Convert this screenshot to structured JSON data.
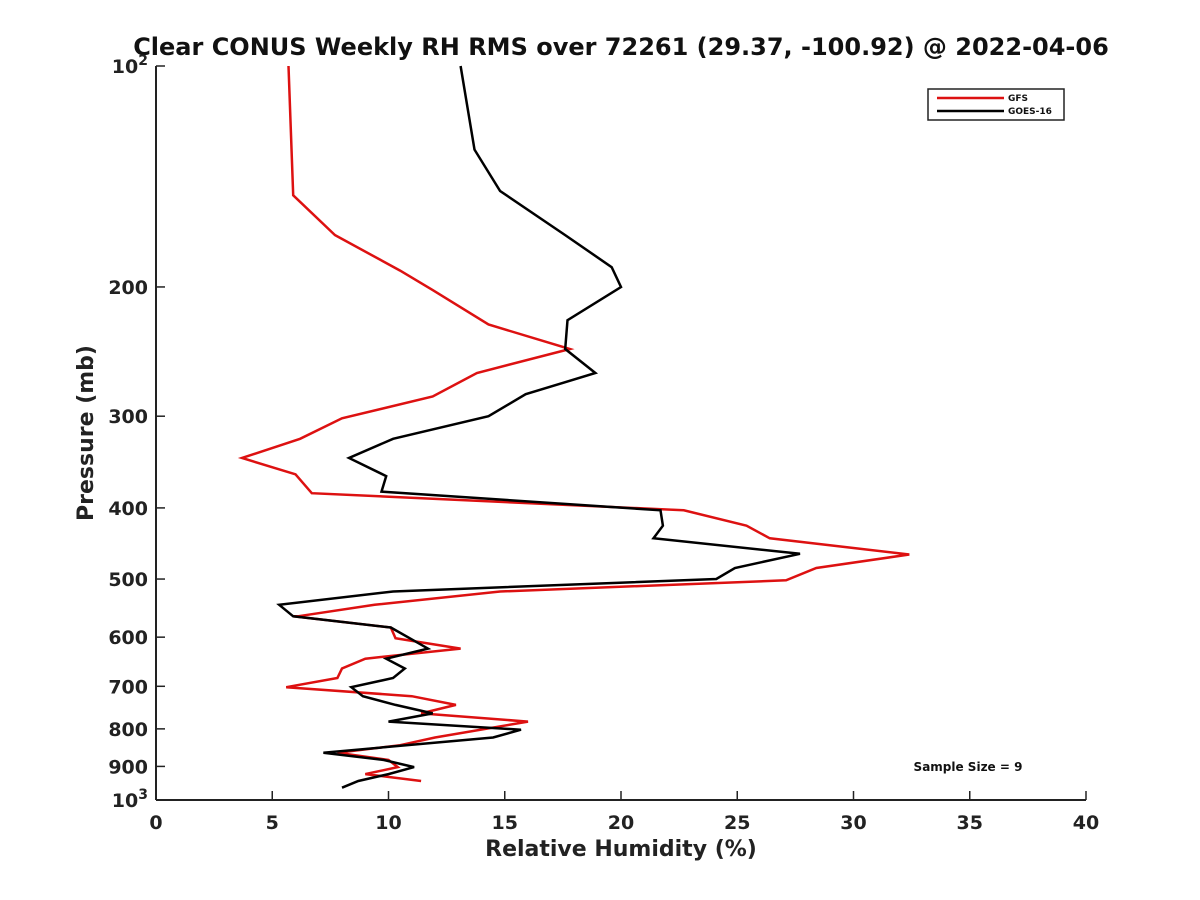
{
  "chart_data": {
    "type": "line",
    "title": "Clear CONUS Weekly RH RMS over 72261 (29.37, -100.92) @ 2022-04-06",
    "xlabel": "Relative Humidity (%)",
    "ylabel": "Pressure (mb)",
    "xlim": [
      0,
      40
    ],
    "ylim": [
      100,
      1000
    ],
    "yscale": "log",
    "y_reversed": true,
    "x_ticks": [
      0,
      5,
      10,
      15,
      20,
      25,
      30,
      35,
      40
    ],
    "y_ticks": [
      {
        "value": 100,
        "base": "10",
        "exp": "2"
      },
      {
        "value": 200,
        "label": "200"
      },
      {
        "value": 300,
        "label": "300"
      },
      {
        "value": 400,
        "label": "400"
      },
      {
        "value": 500,
        "label": "500"
      },
      {
        "value": 600,
        "label": "600"
      },
      {
        "value": 700,
        "label": "700"
      },
      {
        "value": 800,
        "label": "800"
      },
      {
        "value": 900,
        "label": "900"
      },
      {
        "value": 1000,
        "base": "10",
        "exp": "3"
      }
    ],
    "legend_position": "top-right",
    "annotation": "Sample Size = 9",
    "series": [
      {
        "name": "GFS",
        "color": "#dd1111",
        "points": [
          [
            5.7,
            100
          ],
          [
            5.9,
            150
          ],
          [
            7.7,
            170
          ],
          [
            10.5,
            190
          ],
          [
            11.9,
            202
          ],
          [
            14.3,
            225
          ],
          [
            17.8,
            243
          ],
          [
            13.8,
            262
          ],
          [
            11.9,
            282
          ],
          [
            8.0,
            302
          ],
          [
            6.2,
            322
          ],
          [
            3.7,
            342
          ],
          [
            6.0,
            360
          ],
          [
            6.7,
            382
          ],
          [
            22.7,
            403
          ],
          [
            25.4,
            423
          ],
          [
            26.4,
            440
          ],
          [
            32.4,
            463
          ],
          [
            28.4,
            483
          ],
          [
            27.1,
            502
          ],
          [
            14.8,
            520
          ],
          [
            9.4,
            542
          ],
          [
            6.1,
            562
          ],
          [
            5.9,
            562
          ],
          [
            10.1,
            582
          ],
          [
            10.3,
            602
          ],
          [
            13.1,
            622
          ],
          [
            9.0,
            642
          ],
          [
            8.0,
            662
          ],
          [
            7.8,
            682
          ],
          [
            5.6,
            702
          ],
          [
            11.0,
            722
          ],
          [
            12.9,
            742
          ],
          [
            11.4,
            762
          ],
          [
            16.0,
            782
          ],
          [
            12.0,
            822
          ],
          [
            10.5,
            842
          ],
          [
            7.8,
            862
          ],
          [
            10.0,
            882
          ],
          [
            10.4,
            902
          ],
          [
            9.0,
            922
          ],
          [
            11.4,
            942
          ]
        ]
      },
      {
        "name": "GOES-16",
        "color": "#000000",
        "points": [
          [
            13.1,
            100
          ],
          [
            13.7,
            130
          ],
          [
            14.8,
            148
          ],
          [
            17.6,
            170
          ],
          [
            19.6,
            188
          ],
          [
            20.0,
            200
          ],
          [
            17.7,
            222
          ],
          [
            17.6,
            243
          ],
          [
            18.9,
            262
          ],
          [
            15.9,
            280
          ],
          [
            14.3,
            300
          ],
          [
            10.2,
            322
          ],
          [
            8.3,
            342
          ],
          [
            9.9,
            362
          ],
          [
            9.7,
            380
          ],
          [
            21.7,
            403
          ],
          [
            21.8,
            423
          ],
          [
            21.4,
            440
          ],
          [
            27.7,
            462
          ],
          [
            24.9,
            483
          ],
          [
            24.1,
            500
          ],
          [
            10.2,
            520
          ],
          [
            5.3,
            542
          ],
          [
            5.9,
            562
          ],
          [
            10.1,
            582
          ],
          [
            11.7,
            622
          ],
          [
            9.9,
            642
          ],
          [
            10.7,
            662
          ],
          [
            10.2,
            682
          ],
          [
            8.4,
            702
          ],
          [
            8.9,
            722
          ],
          [
            10.3,
            742
          ],
          [
            11.9,
            762
          ],
          [
            10.0,
            782
          ],
          [
            15.7,
            802
          ],
          [
            14.5,
            822
          ],
          [
            7.2,
            862
          ],
          [
            9.8,
            882
          ],
          [
            11.1,
            902
          ],
          [
            10.0,
            922
          ],
          [
            8.7,
            942
          ],
          [
            8.0,
            962
          ]
        ]
      }
    ]
  }
}
